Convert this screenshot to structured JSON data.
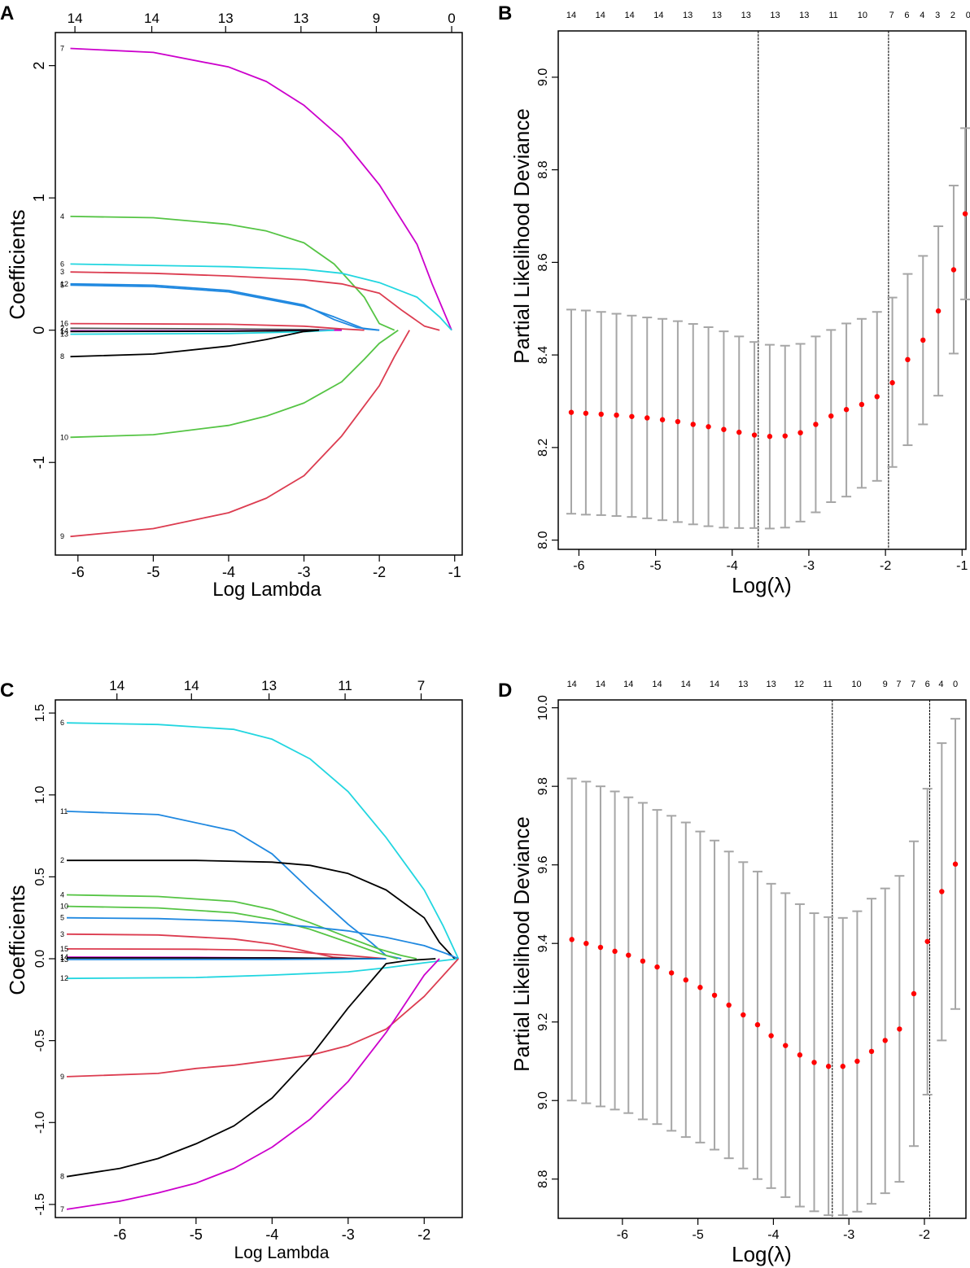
{
  "figure": {
    "background": "#ffffff",
    "axis_color": "#000000",
    "point_color": "#ff0000",
    "errorbar_color": "#a6a6a6"
  },
  "chart_data": [
    {
      "panel": "A",
      "type": "line",
      "xlabel": "Log Lambda",
      "ylabel": "Coefficients",
      "xlim": [
        -6.3,
        -0.9
      ],
      "ylim": [
        -1.7,
        2.25
      ],
      "xticks": [
        -6,
        -5,
        -4,
        -3,
        -2,
        -1
      ],
      "yticks": [
        -1,
        0,
        1,
        2
      ],
      "top_axis": {
        "at": [
          -6.04,
          -5.02,
          -4.04,
          -3.04,
          -2.04,
          -1.04
        ],
        "labels": [
          "14",
          "14",
          "13",
          "13",
          "9",
          "0"
        ]
      },
      "series": [
        {
          "name": "7",
          "color": "#cc00cc",
          "x": [
            -6.1,
            -5.0,
            -4.0,
            -3.5,
            -3.0,
            -2.5,
            -2.0,
            -1.5,
            -1.3,
            -1.04
          ],
          "y": [
            2.13,
            2.1,
            1.99,
            1.88,
            1.7,
            1.45,
            1.1,
            0.65,
            0.35,
            0.0
          ]
        },
        {
          "name": "4",
          "color": "#55c444",
          "x": [
            -6.1,
            -5.0,
            -4.0,
            -3.5,
            -3.0,
            -2.6,
            -2.2,
            -2.0,
            -1.8
          ],
          "y": [
            0.86,
            0.85,
            0.8,
            0.75,
            0.66,
            0.5,
            0.25,
            0.05,
            0.0
          ]
        },
        {
          "name": "6",
          "color": "#22d6e0",
          "x": [
            -6.1,
            -5.0,
            -4.0,
            -3.0,
            -2.5,
            -2.0,
            -1.5,
            -1.2,
            -1.04
          ],
          "y": [
            0.5,
            0.49,
            0.48,
            0.46,
            0.43,
            0.36,
            0.25,
            0.1,
            0.0
          ]
        },
        {
          "name": "3",
          "color": "#dc3c50",
          "x": [
            -6.1,
            -5.0,
            -4.0,
            -3.0,
            -2.5,
            -2.0,
            -1.7,
            -1.4,
            -1.2
          ],
          "y": [
            0.44,
            0.43,
            0.41,
            0.38,
            0.35,
            0.28,
            0.15,
            0.03,
            0.0
          ]
        },
        {
          "name": "12",
          "color": "#1f88e0",
          "x": [
            -6.1,
            -5.0,
            -4.0,
            -3.0,
            -2.6,
            -2.3,
            -2.0
          ],
          "y": [
            0.35,
            0.34,
            0.3,
            0.19,
            0.08,
            0.02,
            0.0
          ]
        },
        {
          "name": "5",
          "color": "#1f88e0",
          "x": [
            -6.1,
            -5.0,
            -4.0,
            -3.0,
            -2.6,
            -2.2,
            -2.0
          ],
          "y": [
            0.34,
            0.33,
            0.29,
            0.18,
            0.1,
            0.01,
            0.0
          ]
        },
        {
          "name": "16",
          "color": "#dc3c50",
          "x": [
            -6.1,
            -4.0,
            -3.0,
            -2.5,
            -2.2
          ],
          "y": [
            0.05,
            0.045,
            0.03,
            0.01,
            0.0
          ]
        },
        {
          "name": "2",
          "color": "#555555",
          "x": [
            -6.1,
            -4.0,
            -3.0,
            -2.5
          ],
          "y": [
            0.015,
            0.01,
            0.005,
            0.0
          ]
        },
        {
          "name": "14",
          "color": "#cc00cc",
          "x": [
            -6.1,
            -4.0,
            -3.0,
            -2.5
          ],
          "y": [
            -0.005,
            -0.005,
            -0.002,
            0.0
          ]
        },
        {
          "name": "1",
          "color": "#000000",
          "x": [
            -6.1,
            -4.0,
            -3.0,
            -2.8
          ],
          "y": [
            -0.01,
            -0.008,
            -0.003,
            0.0
          ]
        },
        {
          "name": "13",
          "color": "#22d6e0",
          "x": [
            -6.1,
            -4.0,
            -3.0,
            -2.6
          ],
          "y": [
            -0.03,
            -0.025,
            -0.012,
            0.0
          ]
        },
        {
          "name": "8",
          "color": "#000000",
          "x": [
            -6.1,
            -5.0,
            -4.0,
            -3.5,
            -3.0,
            -2.8
          ],
          "y": [
            -0.2,
            -0.18,
            -0.12,
            -0.07,
            -0.01,
            0.0
          ]
        },
        {
          "name": "10",
          "color": "#55c444",
          "x": [
            -6.1,
            -5.0,
            -4.0,
            -3.5,
            -3.0,
            -2.5,
            -2.2,
            -2.0,
            -1.75
          ],
          "y": [
            -0.81,
            -0.79,
            -0.72,
            -0.65,
            -0.55,
            -0.39,
            -0.22,
            -0.1,
            0.0
          ]
        },
        {
          "name": "9",
          "color": "#dc3c50",
          "x": [
            -6.1,
            -5.0,
            -4.0,
            -3.5,
            -3.0,
            -2.5,
            -2.0,
            -1.8,
            -1.6
          ],
          "y": [
            -1.56,
            -1.5,
            -1.38,
            -1.27,
            -1.1,
            -0.8,
            -0.42,
            -0.2,
            0.0
          ]
        }
      ]
    },
    {
      "panel": "B",
      "type": "scatter",
      "xlabel": "Log(λ)",
      "ylabel": "Partial Likelihood Deviance",
      "xlim": [
        -6.27,
        -0.95
      ],
      "ylim": [
        7.98,
        9.1
      ],
      "xticks": [
        -6,
        -5,
        -4,
        -3,
        -2,
        -1
      ],
      "yticks": [
        8.0,
        8.2,
        8.4,
        8.6,
        8.8,
        9.0
      ],
      "vlines": [
        -3.66,
        -1.96
      ],
      "top_axis": {
        "at": [
          -6.1,
          -5.72,
          -5.34,
          -4.96,
          -4.58,
          -4.2,
          -3.82,
          -3.44,
          -3.06,
          -2.68,
          -2.3,
          -1.92,
          -1.72,
          -1.52,
          -1.32,
          -1.12,
          -0.92
        ],
        "labels": [
          "14",
          "14",
          "14",
          "14",
          "13",
          "13",
          "13",
          "13",
          "13",
          "11",
          "10",
          "7",
          "6",
          "4",
          "3",
          "2",
          "0"
        ]
      },
      "x": [
        -6.1,
        -5.91,
        -5.71,
        -5.51,
        -5.31,
        -5.11,
        -4.91,
        -4.71,
        -4.51,
        -4.31,
        -4.11,
        -3.91,
        -3.71,
        -3.51,
        -3.31,
        -3.11,
        -2.91,
        -2.71,
        -2.51,
        -2.31,
        -2.11,
        -1.91,
        -1.71,
        -1.51,
        -1.31,
        -1.11,
        -0.96
      ],
      "y": [
        8.276,
        8.274,
        8.272,
        8.27,
        8.267,
        8.264,
        8.26,
        8.256,
        8.25,
        8.245,
        8.239,
        8.233,
        8.227,
        8.224,
        8.225,
        8.232,
        8.25,
        8.268,
        8.282,
        8.293,
        8.31,
        8.34,
        8.39,
        8.432,
        8.495,
        8.584,
        8.705
      ],
      "lower": [
        8.057,
        8.055,
        8.054,
        8.052,
        8.05,
        8.047,
        8.043,
        8.039,
        8.034,
        8.03,
        8.027,
        8.026,
        8.026,
        8.025,
        8.027,
        8.04,
        8.06,
        8.082,
        8.094,
        8.113,
        8.128,
        8.158,
        8.205,
        8.25,
        8.312,
        8.403,
        8.52
      ],
      "upper": [
        8.498,
        8.496,
        8.493,
        8.489,
        8.485,
        8.481,
        8.478,
        8.473,
        8.467,
        8.46,
        8.451,
        8.44,
        8.428,
        8.422,
        8.42,
        8.424,
        8.44,
        8.454,
        8.468,
        8.478,
        8.493,
        8.524,
        8.575,
        8.614,
        8.678,
        8.766,
        8.89
      ]
    },
    {
      "panel": "C",
      "type": "line",
      "xlabel": "Log Lambda",
      "ylabel": "Coefficients",
      "xlim": [
        -6.85,
        -1.5
      ],
      "ylim": [
        -1.58,
        1.58
      ],
      "xticks": [
        -6,
        -5,
        -4,
        -3,
        -2
      ],
      "yticks": [
        -1.5,
        -1.0,
        -0.5,
        0.0,
        0.5,
        1.0,
        1.5
      ],
      "top_axis": {
        "at": [
          -6.04,
          -5.06,
          -4.04,
          -3.04,
          -2.04
        ],
        "labels": [
          "14",
          "14",
          "13",
          "11",
          "7"
        ]
      },
      "series": [
        {
          "name": "6",
          "color": "#22d6e0",
          "x": [
            -6.7,
            -5.5,
            -4.5,
            -4.0,
            -3.5,
            -3.0,
            -2.5,
            -2.0,
            -1.75,
            -1.55
          ],
          "y": [
            1.44,
            1.43,
            1.4,
            1.34,
            1.22,
            1.02,
            0.74,
            0.42,
            0.2,
            0.0
          ]
        },
        {
          "name": "11",
          "color": "#1f88e0",
          "x": [
            -6.7,
            -5.5,
            -4.5,
            -4.0,
            -3.5,
            -3.0,
            -2.7,
            -2.5,
            -2.3
          ],
          "y": [
            0.9,
            0.88,
            0.78,
            0.64,
            0.42,
            0.21,
            0.1,
            0.02,
            0.0
          ]
        },
        {
          "name": "2",
          "color": "#000000",
          "x": [
            -6.7,
            -5.0,
            -4.0,
            -3.5,
            -3.0,
            -2.5,
            -2.0,
            -1.8,
            -1.6
          ],
          "y": [
            0.6,
            0.6,
            0.59,
            0.57,
            0.52,
            0.42,
            0.25,
            0.1,
            0.0
          ]
        },
        {
          "name": "4",
          "color": "#55c444",
          "x": [
            -6.7,
            -5.5,
            -4.5,
            -4.0,
            -3.5,
            -3.0,
            -2.6,
            -2.3,
            -2.1
          ],
          "y": [
            0.39,
            0.38,
            0.35,
            0.3,
            0.22,
            0.13,
            0.06,
            0.02,
            0.0
          ]
        },
        {
          "name": "10",
          "color": "#55c444",
          "x": [
            -6.7,
            -5.5,
            -4.5,
            -4.0,
            -3.5,
            -3.0,
            -2.7,
            -2.5,
            -2.35
          ],
          "y": [
            0.32,
            0.31,
            0.28,
            0.24,
            0.18,
            0.1,
            0.05,
            0.02,
            0.0
          ]
        },
        {
          "name": "5",
          "color": "#1f88e0",
          "x": [
            -6.7,
            -5.5,
            -4.5,
            -4.0,
            -3.5,
            -3.0,
            -2.5,
            -2.0,
            -1.7,
            -1.55
          ],
          "y": [
            0.25,
            0.245,
            0.23,
            0.215,
            0.195,
            0.17,
            0.13,
            0.08,
            0.03,
            0.0
          ]
        },
        {
          "name": "3",
          "color": "#dc3c50",
          "x": [
            -6.7,
            -5.5,
            -4.5,
            -4.0,
            -3.5,
            -3.2,
            -2.9
          ],
          "y": [
            0.15,
            0.145,
            0.12,
            0.09,
            0.04,
            0.01,
            0.0
          ]
        },
        {
          "name": "15",
          "color": "#dc3c50",
          "x": [
            -6.7,
            -5.0,
            -4.0,
            -3.0,
            -2.5
          ],
          "y": [
            0.06,
            0.058,
            0.05,
            0.02,
            0.0
          ]
        },
        {
          "name": "14",
          "color": "#cc00cc",
          "x": [
            -6.7,
            -5.0,
            -4.0,
            -3.0,
            -2.5
          ],
          "y": [
            0.01,
            0.008,
            0.005,
            0.001,
            0.0
          ]
        },
        {
          "name": "1",
          "color": "#000000",
          "x": [
            -6.7,
            -4.0,
            -3.0,
            -2.5
          ],
          "y": [
            0.005,
            0.005,
            0.002,
            0.0
          ]
        },
        {
          "name": "13",
          "color": "#1f88e0",
          "x": [
            -6.7,
            -4.0,
            -3.0,
            -2.5
          ],
          "y": [
            -0.005,
            -0.004,
            -0.002,
            0.0
          ]
        },
        {
          "name": "12",
          "color": "#22d6e0",
          "x": [
            -6.7,
            -5.0,
            -4.0,
            -3.0,
            -2.5,
            -2.0,
            -1.55
          ],
          "y": [
            -0.12,
            -0.115,
            -0.1,
            -0.08,
            -0.055,
            -0.025,
            0.0
          ]
        },
        {
          "name": "9",
          "color": "#dc3c50",
          "x": [
            -6.7,
            -5.5,
            -5.0,
            -4.5,
            -4.0,
            -3.5,
            -3.0,
            -2.5,
            -2.0,
            -1.55
          ],
          "y": [
            -0.72,
            -0.7,
            -0.67,
            -0.65,
            -0.62,
            -0.59,
            -0.53,
            -0.43,
            -0.23,
            0.0
          ]
        },
        {
          "name": "8",
          "color": "#000000",
          "x": [
            -6.7,
            -6.0,
            -5.5,
            -5.0,
            -4.5,
            -4.0,
            -3.5,
            -3.0,
            -2.5,
            -2.2,
            -1.85
          ],
          "y": [
            -1.33,
            -1.28,
            -1.22,
            -1.13,
            -1.02,
            -0.85,
            -0.6,
            -0.3,
            -0.03,
            -0.01,
            0.0
          ]
        },
        {
          "name": "7",
          "color": "#cc00cc",
          "x": [
            -6.7,
            -6.0,
            -5.5,
            -5.0,
            -4.5,
            -4.0,
            -3.5,
            -3.0,
            -2.5,
            -2.0,
            -1.8
          ],
          "y": [
            -1.53,
            -1.48,
            -1.43,
            -1.37,
            -1.28,
            -1.15,
            -0.98,
            -0.75,
            -0.45,
            -0.1,
            0.0
          ]
        }
      ]
    },
    {
      "panel": "D",
      "type": "scatter",
      "xlabel": "Log(λ)",
      "ylabel": "Partial Likelihood Deviance",
      "xlim": [
        -6.85,
        -1.45
      ],
      "ylim": [
        8.7,
        10.02
      ],
      "xticks": [
        -6,
        -5,
        -4,
        -3,
        -2
      ],
      "yticks": [
        8.8,
        9.0,
        9.2,
        9.4,
        9.6,
        9.8,
        10.0
      ],
      "vlines": [
        -3.22,
        -1.93
      ],
      "top_axis": {
        "at": [
          -6.67,
          -6.29,
          -5.92,
          -5.54,
          -5.16,
          -4.78,
          -4.4,
          -4.03,
          -3.66,
          -3.28,
          -2.9,
          -2.52,
          -2.34,
          -2.15,
          -1.96,
          -1.78,
          -1.59
        ],
        "labels": [
          "14",
          "14",
          "14",
          "14",
          "14",
          "14",
          "13",
          "13",
          "12",
          "11",
          "10",
          "9",
          "7",
          "7",
          "6",
          "4",
          "0"
        ]
      },
      "x": [
        -6.67,
        -6.48,
        -6.29,
        -6.1,
        -5.92,
        -5.73,
        -5.54,
        -5.35,
        -5.16,
        -4.97,
        -4.78,
        -4.59,
        -4.4,
        -4.21,
        -4.03,
        -3.84,
        -3.65,
        -3.46,
        -3.27,
        -3.08,
        -2.89,
        -2.7,
        -2.52,
        -2.33,
        -2.14,
        -1.96,
        -1.77,
        -1.59
      ],
      "y": [
        9.41,
        9.4,
        9.39,
        9.38,
        9.37,
        9.355,
        9.34,
        9.325,
        9.307,
        9.288,
        9.268,
        9.243,
        9.218,
        9.193,
        9.165,
        9.14,
        9.116,
        9.097,
        9.087,
        9.087,
        9.1,
        9.125,
        9.153,
        9.182,
        9.272,
        9.405,
        9.532,
        9.602
      ],
      "lower": [
        9.0,
        8.993,
        8.985,
        8.977,
        8.968,
        8.952,
        8.94,
        8.923,
        8.907,
        8.893,
        8.875,
        8.853,
        8.827,
        8.8,
        8.777,
        8.754,
        8.73,
        8.718,
        8.708,
        8.708,
        8.717,
        8.737,
        8.764,
        8.793,
        8.884,
        9.015,
        9.153,
        9.233
      ],
      "upper": [
        9.82,
        9.812,
        9.8,
        9.787,
        9.772,
        9.758,
        9.74,
        9.725,
        9.708,
        9.685,
        9.662,
        9.634,
        9.607,
        9.583,
        9.552,
        9.528,
        9.5,
        9.477,
        9.467,
        9.465,
        9.482,
        9.514,
        9.54,
        9.572,
        9.66,
        9.794,
        9.91,
        9.972
      ]
    }
  ],
  "panels": [
    {
      "label": "A"
    },
    {
      "label": "B"
    },
    {
      "label": "C"
    },
    {
      "label": "D"
    }
  ]
}
